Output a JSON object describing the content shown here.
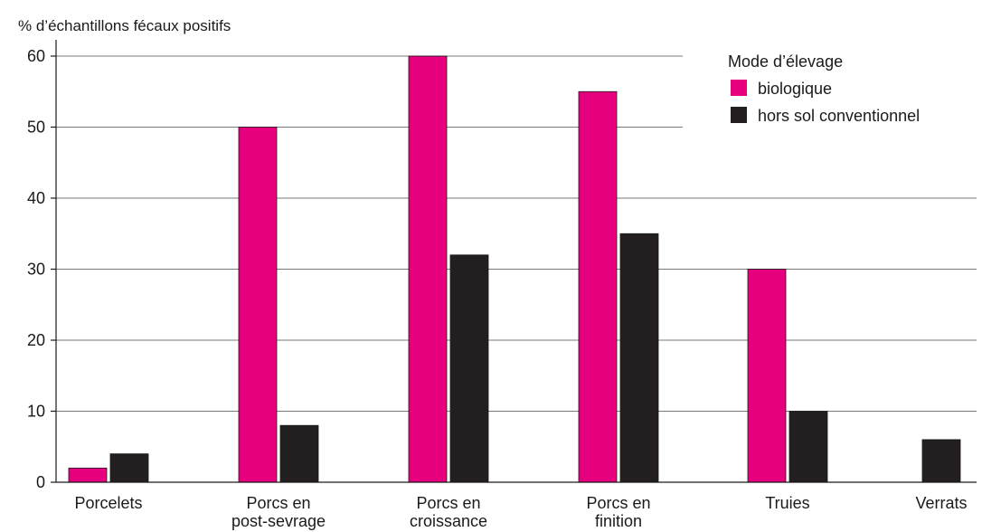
{
  "chart_data": {
    "type": "bar",
    "ylabel": "% d’échantillons fécaux positifs",
    "ylim": [
      0,
      60
    ],
    "yticks": [
      0,
      10,
      20,
      30,
      40,
      50,
      60
    ],
    "grid": true,
    "categories": [
      [
        "Porcelets"
      ],
      [
        "Porcs en",
        "post-sevrage"
      ],
      [
        "Porcs en",
        "croissance"
      ],
      [
        "Porcs en",
        "finition"
      ],
      [
        "Truies"
      ],
      [
        "Verrats"
      ]
    ],
    "legend": {
      "title": "Mode d’élevage",
      "position": "top-right"
    },
    "series": [
      {
        "name": "biologique",
        "color": "#e6007e",
        "values": [
          2,
          50,
          60,
          55,
          30,
          null
        ]
      },
      {
        "name": "hors sol conventionnel",
        "color": "#231f20",
        "values": [
          4,
          8,
          32,
          35,
          10,
          6
        ]
      }
    ]
  }
}
